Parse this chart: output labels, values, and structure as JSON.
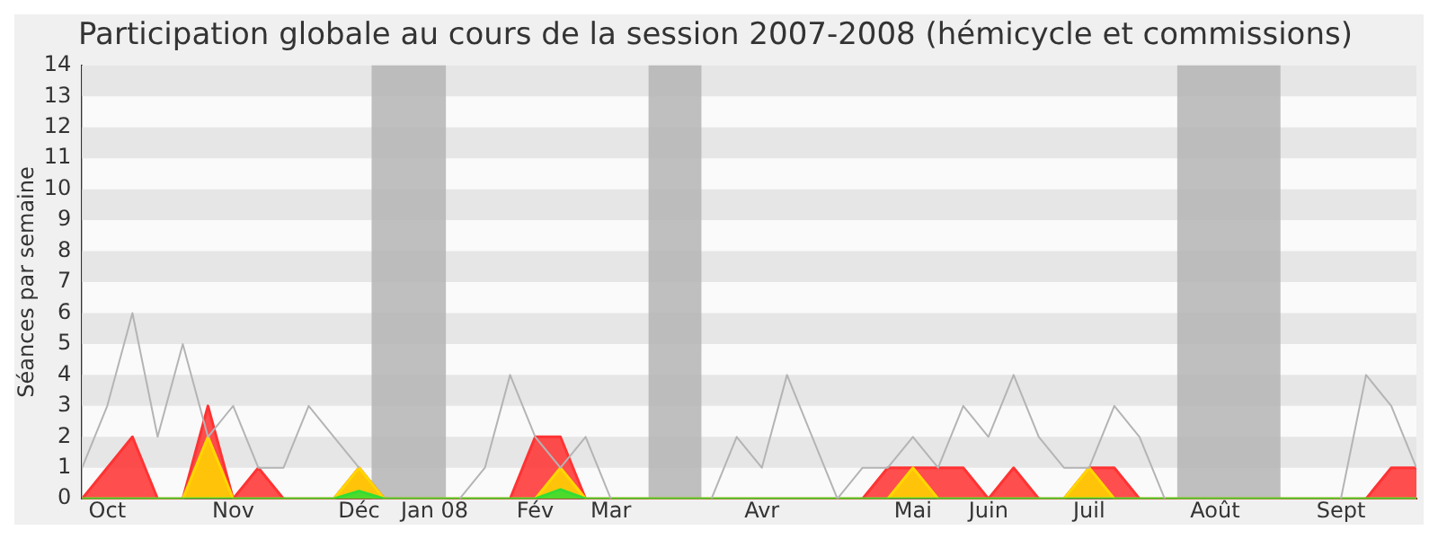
{
  "chart_data": {
    "type": "area",
    "title": "Participation globale au cours de la session 2007-2008 (hémicycle et commissions)",
    "ylabel": "Séances par semaine",
    "categories": [
      null,
      "Oct",
      null,
      null,
      null,
      null,
      "Nov",
      null,
      null,
      null,
      null,
      "Déc",
      null,
      null,
      "Jan 08",
      null,
      null,
      null,
      "Fév",
      null,
      null,
      "Mar",
      null,
      null,
      null,
      null,
      null,
      "Avr",
      null,
      null,
      null,
      null,
      null,
      "Mai",
      null,
      null,
      "Juin",
      null,
      null,
      null,
      "Juil",
      null,
      null,
      null,
      null,
      "Août",
      null,
      null,
      null,
      null,
      "Sept",
      null,
      null,
      null
    ],
    "series": [
      {
        "color": "#ff3333",
        "values": [
          0,
          1,
          2,
          0,
          0,
          3,
          0,
          1,
          0,
          0,
          0,
          1,
          0,
          0,
          0,
          0,
          0,
          0,
          2,
          2,
          0,
          0,
          0,
          0,
          0,
          0,
          0,
          0,
          0,
          0,
          0,
          0,
          1,
          1,
          1,
          1,
          0,
          1,
          0,
          0,
          1,
          1,
          0,
          0,
          0,
          0,
          0,
          0,
          0,
          0,
          0,
          0,
          1,
          1
        ]
      },
      {
        "color": "#ffd700",
        "values": [
          0,
          0,
          0,
          0,
          0,
          2,
          0,
          0,
          0,
          0,
          0,
          1,
          0,
          0,
          0,
          0,
          0,
          0,
          0,
          1,
          0,
          0,
          0,
          0,
          0,
          0,
          0,
          0,
          0,
          0,
          0,
          0,
          0,
          1,
          0,
          0,
          0,
          0,
          0,
          0,
          1,
          0,
          0,
          0,
          0,
          0,
          0,
          0,
          0,
          0,
          0,
          0,
          0,
          0
        ]
      },
      {
        "color": "#33dd33",
        "values": [
          0,
          0,
          0,
          0,
          0,
          0,
          0,
          0,
          0,
          0,
          0,
          0.25,
          0,
          0,
          0,
          0,
          0,
          0,
          0,
          0.3,
          0,
          0,
          0,
          0,
          0,
          0,
          0,
          0,
          0,
          0,
          0,
          0,
          0,
          0,
          0,
          0,
          0,
          0,
          0,
          0,
          0,
          0,
          0,
          0,
          0,
          0,
          0,
          0,
          0,
          0,
          0,
          0,
          0,
          0
        ]
      },
      {
        "type": "line",
        "color": "#b4b4b4",
        "values": [
          1,
          3,
          6,
          2,
          5,
          2,
          3,
          1,
          1,
          3,
          2,
          1,
          null,
          null,
          null,
          0,
          1,
          4,
          2,
          1,
          2,
          0,
          null,
          null,
          null,
          0,
          2,
          1,
          4,
          2,
          0,
          1,
          1,
          2,
          1,
          3,
          2,
          4,
          2,
          1,
          1,
          3,
          2,
          0,
          null,
          null,
          null,
          null,
          null,
          null,
          0,
          4,
          3,
          1
        ]
      }
    ],
    "ylim": [
      0,
      14
    ],
    "yticks": [
      0,
      1,
      2,
      3,
      4,
      5,
      6,
      7,
      8,
      9,
      10,
      11,
      12,
      13,
      14
    ],
    "legend": false,
    "marker": "none",
    "line_style": "solid"
  }
}
